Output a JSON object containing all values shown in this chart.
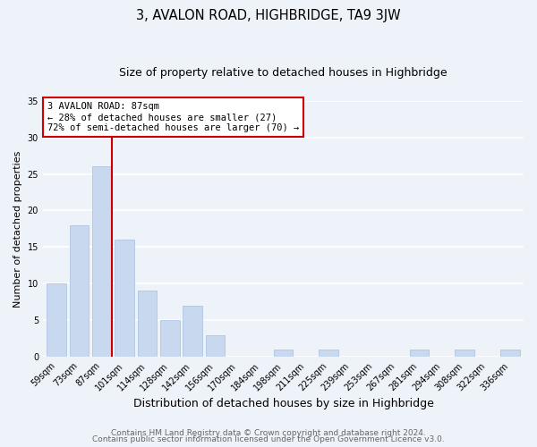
{
  "title": "3, AVALON ROAD, HIGHBRIDGE, TA9 3JW",
  "subtitle": "Size of property relative to detached houses in Highbridge",
  "xlabel": "Distribution of detached houses by size in Highbridge",
  "ylabel": "Number of detached properties",
  "categories": [
    "59sqm",
    "73sqm",
    "87sqm",
    "101sqm",
    "114sqm",
    "128sqm",
    "142sqm",
    "156sqm",
    "170sqm",
    "184sqm",
    "198sqm",
    "211sqm",
    "225sqm",
    "239sqm",
    "253sqm",
    "267sqm",
    "281sqm",
    "294sqm",
    "308sqm",
    "322sqm",
    "336sqm"
  ],
  "values": [
    10,
    18,
    26,
    16,
    9,
    5,
    7,
    3,
    0,
    0,
    1,
    0,
    1,
    0,
    0,
    0,
    1,
    0,
    1,
    0,
    1
  ],
  "bar_color": "#c8d8ee",
  "bar_edge_color": "#a8c0e0",
  "highlight_bar_index": 2,
  "highlight_line_color": "#cc0000",
  "ylim": [
    0,
    35
  ],
  "yticks": [
    0,
    5,
    10,
    15,
    20,
    25,
    30,
    35
  ],
  "annotation_text": "3 AVALON ROAD: 87sqm\n← 28% of detached houses are smaller (27)\n72% of semi-detached houses are larger (70) →",
  "annotation_box_edge_color": "#cc0000",
  "footer_line1": "Contains HM Land Registry data © Crown copyright and database right 2024.",
  "footer_line2": "Contains public sector information licensed under the Open Government Licence v3.0.",
  "background_color": "#eef2f9",
  "plot_bg_color": "#eef2f9",
  "grid_color": "#ffffff",
  "title_fontsize": 10.5,
  "subtitle_fontsize": 9,
  "xlabel_fontsize": 9,
  "ylabel_fontsize": 8,
  "footer_fontsize": 6.5,
  "tick_fontsize": 7
}
